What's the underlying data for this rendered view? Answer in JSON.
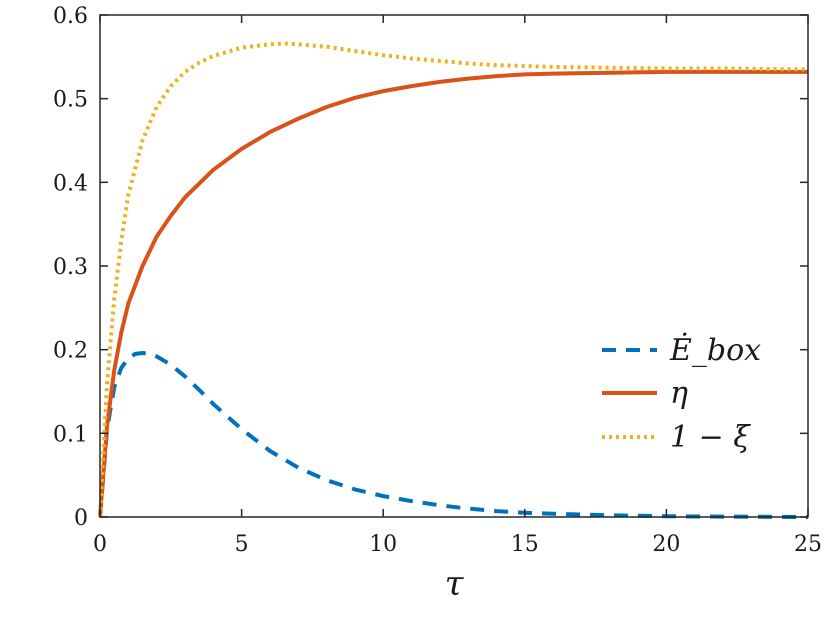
{
  "chart_data": {
    "type": "line",
    "title": "",
    "xlabel": "τ",
    "ylabel": "",
    "xlim": [
      0,
      25
    ],
    "ylim": [
      0,
      0.6
    ],
    "xticks": [
      0,
      5,
      10,
      15,
      20,
      25
    ],
    "xtick_labels": [
      "0",
      "5",
      "10",
      "15",
      "20",
      "25"
    ],
    "yticks": [
      0,
      0.1,
      0.2,
      0.3,
      0.4,
      0.5,
      0.6
    ],
    "ytick_labels": [
      "0",
      "0.1",
      "0.2",
      "0.3",
      "0.4",
      "0.5",
      "0.6"
    ],
    "grid": false,
    "legend_position": "right",
    "series": [
      {
        "name": "Ė_box",
        "color": "#0072BD",
        "style": "dashed",
        "x": [
          0,
          0.25,
          0.5,
          0.75,
          1,
          1.25,
          1.5,
          1.75,
          2,
          2.5,
          3,
          3.5,
          4,
          5,
          6,
          7,
          8,
          9,
          10,
          11,
          12,
          13,
          14,
          15,
          16,
          18,
          20,
          22,
          25
        ],
        "y": [
          0,
          0.105,
          0.155,
          0.178,
          0.19,
          0.195,
          0.196,
          0.195,
          0.192,
          0.182,
          0.168,
          0.152,
          0.135,
          0.105,
          0.079,
          0.059,
          0.044,
          0.033,
          0.025,
          0.019,
          0.014,
          0.01,
          0.007,
          0.005,
          0.004,
          0.002,
          0.001,
          0.0005,
          0.0
        ]
      },
      {
        "name": "η",
        "color": "#D95319",
        "style": "solid",
        "x": [
          0,
          0.25,
          0.5,
          0.75,
          1,
          1.5,
          2,
          2.5,
          3,
          4,
          5,
          6,
          7,
          8,
          9,
          10,
          11,
          12,
          13,
          14,
          15,
          16,
          18,
          20,
          22,
          25
        ],
        "y": [
          0,
          0.11,
          0.175,
          0.22,
          0.255,
          0.3,
          0.335,
          0.36,
          0.382,
          0.415,
          0.44,
          0.46,
          0.476,
          0.49,
          0.501,
          0.509,
          0.515,
          0.52,
          0.524,
          0.527,
          0.529,
          0.53,
          0.531,
          0.532,
          0.532,
          0.532
        ]
      },
      {
        "name": "1 − ξ",
        "color": "#EDB120",
        "style": "dotted",
        "x": [
          0,
          0.25,
          0.5,
          0.75,
          1,
          1.5,
          2,
          2.5,
          3,
          3.5,
          4,
          5,
          6,
          6.5,
          7,
          8,
          9,
          10,
          11,
          12,
          13,
          14,
          15,
          16,
          18,
          20,
          22,
          25
        ],
        "y": [
          0,
          0.16,
          0.26,
          0.33,
          0.385,
          0.45,
          0.49,
          0.515,
          0.532,
          0.543,
          0.551,
          0.561,
          0.565,
          0.566,
          0.565,
          0.562,
          0.557,
          0.552,
          0.548,
          0.545,
          0.542,
          0.54,
          0.539,
          0.538,
          0.537,
          0.536,
          0.536,
          0.535
        ]
      }
    ]
  }
}
